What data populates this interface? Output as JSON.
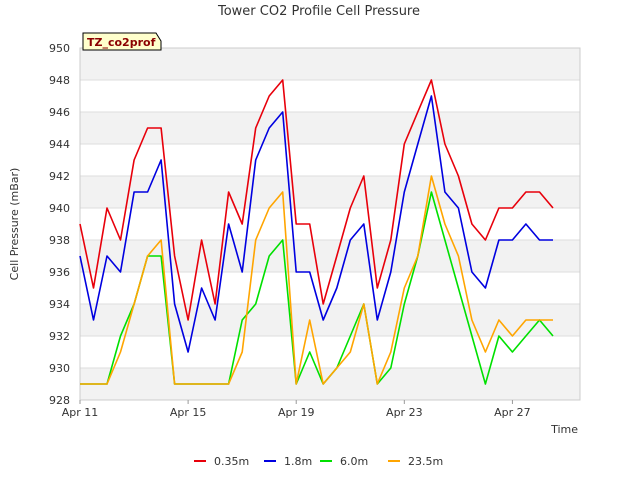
{
  "chart_data": {
    "type": "line",
    "title": "Tower CO2 Profile Cell Pressure",
    "badge": "TZ_co2prof",
    "xlabel": "Time",
    "ylabel": "Cell Pressure (mBar)",
    "xlim": [
      0,
      18.5
    ],
    "ylim": [
      928,
      950
    ],
    "x_ticks": [
      {
        "value": 0,
        "label": "Apr 11"
      },
      {
        "value": 4,
        "label": "Apr 15"
      },
      {
        "value": 8,
        "label": "Apr 19"
      },
      {
        "value": 12,
        "label": "Apr 23"
      },
      {
        "value": 16,
        "label": "Apr 27"
      }
    ],
    "y_ticks": [
      928,
      930,
      932,
      934,
      936,
      938,
      940,
      942,
      944,
      946,
      948,
      950
    ],
    "grid": true,
    "legend_position": "bottom",
    "x": [
      0.0,
      0.5,
      1.0,
      1.5,
      2.0,
      2.5,
      3.0,
      3.5,
      4.0,
      4.5,
      5.0,
      5.5,
      6.0,
      6.5,
      7.0,
      7.5,
      8.0,
      8.5,
      9.0,
      9.5,
      10.0,
      10.5,
      11.0,
      11.5,
      12.0,
      12.5,
      13.0,
      13.5,
      14.0,
      14.5,
      15.0,
      15.5,
      16.0,
      16.5,
      17.0,
      17.5
    ],
    "series": [
      {
        "name": "0.35m",
        "color": "#e8000b",
        "values": [
          939,
          935,
          940,
          938,
          943,
          945,
          945,
          937,
          933,
          938,
          934,
          941,
          939,
          945,
          947,
          948,
          939,
          939,
          934,
          937,
          940,
          942,
          935,
          938,
          944,
          946,
          948,
          944,
          942,
          939,
          938,
          940,
          940,
          941,
          941,
          940
        ]
      },
      {
        "name": "1.8m",
        "color": "#0000e0",
        "values": [
          937,
          933,
          937,
          936,
          941,
          941,
          943,
          934,
          931,
          935,
          933,
          939,
          936,
          943,
          945,
          946,
          936,
          936,
          933,
          935,
          938,
          939,
          933,
          936,
          941,
          944,
          947,
          941,
          940,
          936,
          935,
          938,
          938,
          939,
          938,
          938
        ]
      },
      {
        "name": "6.0m",
        "color": "#00e000",
        "values": [
          929,
          929,
          929,
          932,
          934,
          937,
          937,
          929,
          929,
          929,
          929,
          929,
          933,
          934,
          937,
          938,
          929,
          931,
          929,
          930,
          932,
          934,
          929,
          930,
          934,
          937,
          941,
          938,
          935,
          932,
          929,
          932,
          931,
          932,
          933,
          932
        ]
      },
      {
        "name": "23.5m",
        "color": "#ffa500",
        "values": [
          929,
          929,
          929,
          931,
          934,
          937,
          938,
          929,
          929,
          929,
          929,
          929,
          931,
          938,
          940,
          941,
          929,
          933,
          929,
          930,
          931,
          934,
          929,
          931,
          935,
          937,
          942,
          939,
          937,
          933,
          931,
          933,
          932,
          933,
          933,
          933
        ]
      }
    ]
  }
}
